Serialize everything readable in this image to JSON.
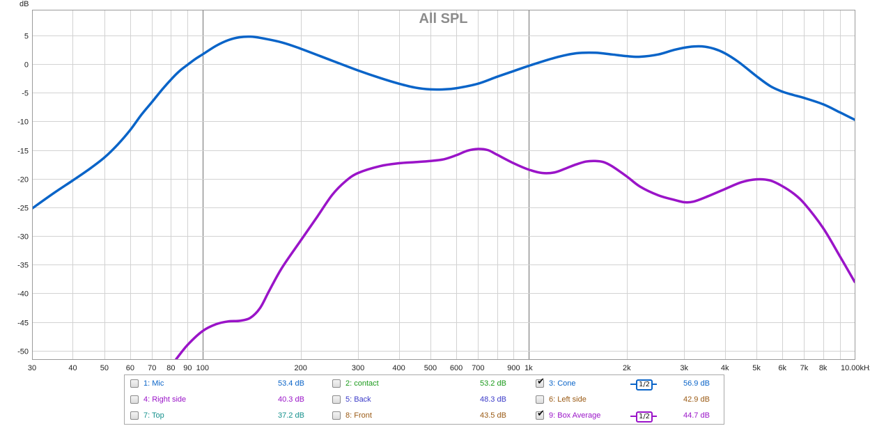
{
  "chart_data": {
    "type": "line",
    "title": "All SPL",
    "ylabel": "dB",
    "xlabel": "",
    "x_scale": "log",
    "xlim": [
      30,
      10000
    ],
    "ylim": [
      -51.5,
      9.5
    ],
    "grid": true,
    "x_ticks": [
      {
        "v": 30,
        "label": "30"
      },
      {
        "v": 40,
        "label": "40"
      },
      {
        "v": 50,
        "label": "50"
      },
      {
        "v": 60,
        "label": "60"
      },
      {
        "v": 70,
        "label": "70"
      },
      {
        "v": 80,
        "label": "80"
      },
      {
        "v": 90,
        "label": "90"
      },
      {
        "v": 100,
        "label": "100"
      },
      {
        "v": 200,
        "label": "200"
      },
      {
        "v": 300,
        "label": "300"
      },
      {
        "v": 400,
        "label": "400"
      },
      {
        "v": 500,
        "label": "500"
      },
      {
        "v": 600,
        "label": "600"
      },
      {
        "v": 700,
        "label": "700"
      },
      {
        "v": 900,
        "label": "900"
      },
      {
        "v": 1000,
        "label": "1k"
      },
      {
        "v": 2000,
        "label": "2k"
      },
      {
        "v": 3000,
        "label": "3k"
      },
      {
        "v": 4000,
        "label": "4k"
      },
      {
        "v": 5000,
        "label": "5k"
      },
      {
        "v": 6000,
        "label": "6k"
      },
      {
        "v": 7000,
        "label": "7k"
      },
      {
        "v": 8000,
        "label": "8k"
      },
      {
        "v": 10000,
        "label": "10.00kHz"
      }
    ],
    "y_ticks": [
      5,
      0,
      -5,
      -10,
      -15,
      -20,
      -25,
      -30,
      -35,
      -40,
      -45,
      -50
    ],
    "series": [
      {
        "name": "3: Cone",
        "color": "#0a64c8",
        "points": [
          [
            30,
            -25.2
          ],
          [
            35,
            -22.5
          ],
          [
            40,
            -20.3
          ],
          [
            45,
            -18.3
          ],
          [
            50,
            -16.3
          ],
          [
            55,
            -14.0
          ],
          [
            60,
            -11.5
          ],
          [
            65,
            -8.8
          ],
          [
            70,
            -6.6
          ],
          [
            75,
            -4.5
          ],
          [
            80,
            -2.7
          ],
          [
            85,
            -1.2
          ],
          [
            90,
            -0.1
          ],
          [
            95,
            0.9
          ],
          [
            100,
            1.7
          ],
          [
            110,
            3.2
          ],
          [
            120,
            4.2
          ],
          [
            130,
            4.7
          ],
          [
            140,
            4.8
          ],
          [
            150,
            4.6
          ],
          [
            175,
            3.8
          ],
          [
            200,
            2.7
          ],
          [
            250,
            0.6
          ],
          [
            300,
            -1.1
          ],
          [
            350,
            -2.4
          ],
          [
            400,
            -3.4
          ],
          [
            450,
            -4.1
          ],
          [
            500,
            -4.4
          ],
          [
            550,
            -4.4
          ],
          [
            600,
            -4.2
          ],
          [
            700,
            -3.4
          ],
          [
            800,
            -2.2
          ],
          [
            900,
            -1.2
          ],
          [
            1000,
            -0.3
          ],
          [
            1200,
            1.1
          ],
          [
            1400,
            1.9
          ],
          [
            1600,
            2.0
          ],
          [
            1800,
            1.7
          ],
          [
            2000,
            1.4
          ],
          [
            2200,
            1.3
          ],
          [
            2500,
            1.7
          ],
          [
            2800,
            2.5
          ],
          [
            3100,
            3.0
          ],
          [
            3400,
            3.1
          ],
          [
            3700,
            2.7
          ],
          [
            4000,
            1.9
          ],
          [
            4400,
            0.4
          ],
          [
            5000,
            -2.1
          ],
          [
            5500,
            -3.8
          ],
          [
            6000,
            -4.8
          ],
          [
            6500,
            -5.4
          ],
          [
            7000,
            -5.9
          ],
          [
            8000,
            -7.0
          ],
          [
            9000,
            -8.4
          ],
          [
            10000,
            -9.7
          ]
        ]
      },
      {
        "name": "9: Box Average",
        "color": "#9a14c8",
        "points": [
          [
            83,
            -51.5
          ],
          [
            90,
            -49.0
          ],
          [
            100,
            -46.6
          ],
          [
            110,
            -45.4
          ],
          [
            120,
            -44.9
          ],
          [
            130,
            -44.8
          ],
          [
            140,
            -44.3
          ],
          [
            150,
            -42.6
          ],
          [
            160,
            -39.6
          ],
          [
            175,
            -35.6
          ],
          [
            200,
            -30.8
          ],
          [
            225,
            -26.6
          ],
          [
            250,
            -22.8
          ],
          [
            275,
            -20.4
          ],
          [
            300,
            -19.0
          ],
          [
            350,
            -17.8
          ],
          [
            400,
            -17.3
          ],
          [
            450,
            -17.1
          ],
          [
            500,
            -16.9
          ],
          [
            550,
            -16.6
          ],
          [
            600,
            -15.9
          ],
          [
            650,
            -15.1
          ],
          [
            700,
            -14.8
          ],
          [
            750,
            -15.0
          ],
          [
            800,
            -15.8
          ],
          [
            900,
            -17.3
          ],
          [
            1000,
            -18.4
          ],
          [
            1100,
            -19.0
          ],
          [
            1200,
            -18.9
          ],
          [
            1300,
            -18.2
          ],
          [
            1400,
            -17.5
          ],
          [
            1500,
            -17.0
          ],
          [
            1600,
            -16.9
          ],
          [
            1700,
            -17.1
          ],
          [
            1800,
            -17.8
          ],
          [
            2000,
            -19.6
          ],
          [
            2200,
            -21.4
          ],
          [
            2500,
            -22.9
          ],
          [
            2800,
            -23.7
          ],
          [
            3000,
            -24.1
          ],
          [
            3200,
            -24.0
          ],
          [
            3500,
            -23.2
          ],
          [
            4000,
            -21.8
          ],
          [
            4500,
            -20.6
          ],
          [
            5000,
            -20.1
          ],
          [
            5500,
            -20.3
          ],
          [
            6000,
            -21.3
          ],
          [
            6500,
            -22.6
          ],
          [
            7000,
            -24.3
          ],
          [
            8000,
            -28.6
          ],
          [
            9000,
            -33.5
          ],
          [
            10000,
            -38.0
          ]
        ]
      }
    ]
  },
  "legend": {
    "entries": [
      {
        "label": "1: Mic",
        "value": "53.4 dB",
        "checked": false,
        "color": "#0a64c8",
        "value_color": "#0a64c8",
        "col": 0,
        "row": 0
      },
      {
        "label": "2: contact",
        "value": "53.2 dB",
        "checked": false,
        "color": "#1a9a1a",
        "value_color": "#1a9a1a",
        "col": 1,
        "row": 0
      },
      {
        "label": "3: Cone",
        "value": "56.9 dB",
        "checked": true,
        "color": "#0a64c8",
        "value_color": "#0a64c8",
        "col": 2,
        "row": 0,
        "smoothing": "1/2"
      },
      {
        "label": "4: Right side",
        "value": "40.3 dB",
        "checked": false,
        "color": "#9a14c8",
        "value_color": "#9a14c8",
        "col": 0,
        "row": 1
      },
      {
        "label": "5: Back",
        "value": "48.3 dB",
        "checked": false,
        "color": "#3a3ac8",
        "value_color": "#3a3ac8",
        "col": 1,
        "row": 1
      },
      {
        "label": "6: Left side",
        "value": "42.9 dB",
        "checked": false,
        "color": "#9a5a14",
        "value_color": "#9a5a14",
        "col": 2,
        "row": 1
      },
      {
        "label": "7: Top",
        "value": "37.2 dB",
        "checked": false,
        "color": "#14908c",
        "value_color": "#14908c",
        "col": 0,
        "row": 2
      },
      {
        "label": "8: Front",
        "value": "43.5 dB",
        "checked": false,
        "color": "#9a5a14",
        "value_color": "#9a5a14",
        "col": 1,
        "row": 2
      },
      {
        "label": "9: Box Average",
        "value": "44.7 dB",
        "checked": true,
        "color": "#9a14c8",
        "value_color": "#9a14c8",
        "col": 2,
        "row": 2,
        "smoothing": "1/2"
      }
    ]
  }
}
